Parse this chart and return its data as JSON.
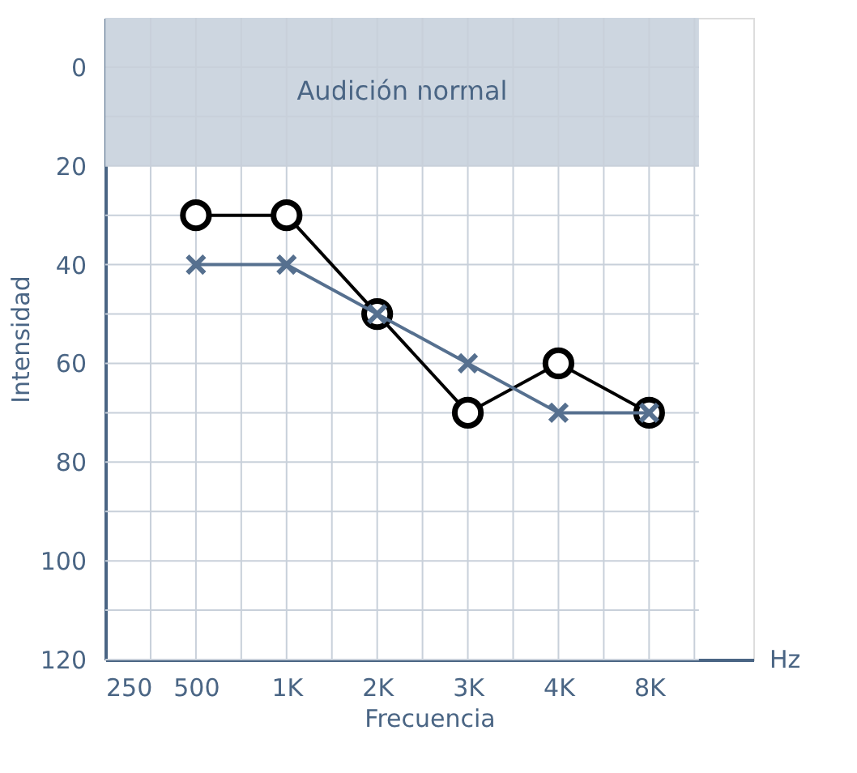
{
  "chart_data": {
    "type": "line",
    "xlabel": "Frecuencia",
    "ylabel": "Intensidad",
    "categories": [
      "250",
      "500",
      "1K",
      "2K",
      "3K",
      "4K",
      "8K"
    ],
    "series": [
      {
        "color": "#000000",
        "marker": "circle",
        "values": [
          null,
          30,
          30,
          50,
          70,
          60,
          70
        ]
      },
      {
        "color": "#56708f",
        "marker": "cross",
        "values": [
          null,
          40,
          40,
          50,
          60,
          70,
          70
        ]
      }
    ],
    "ylim": [
      120,
      -10
    ],
    "yticks": [
      0,
      {
        "value": 10,
        "label": null
      },
      20,
      {
        "value": 30,
        "label": null
      },
      40,
      {
        "value": 50,
        "label": null
      },
      60,
      {
        "value": 70,
        "label": null
      },
      80,
      {
        "value": 90,
        "label": null
      },
      100,
      {
        "value": 110,
        "label": null
      },
      120
    ],
    "bands": [
      {
        "axis": "y",
        "from": -10,
        "to": 20,
        "label": "Audición normal",
        "color": "#cdd6e0"
      }
    ],
    "annotations": [
      "Hz"
    ],
    "grid": true,
    "legend": false
  }
}
